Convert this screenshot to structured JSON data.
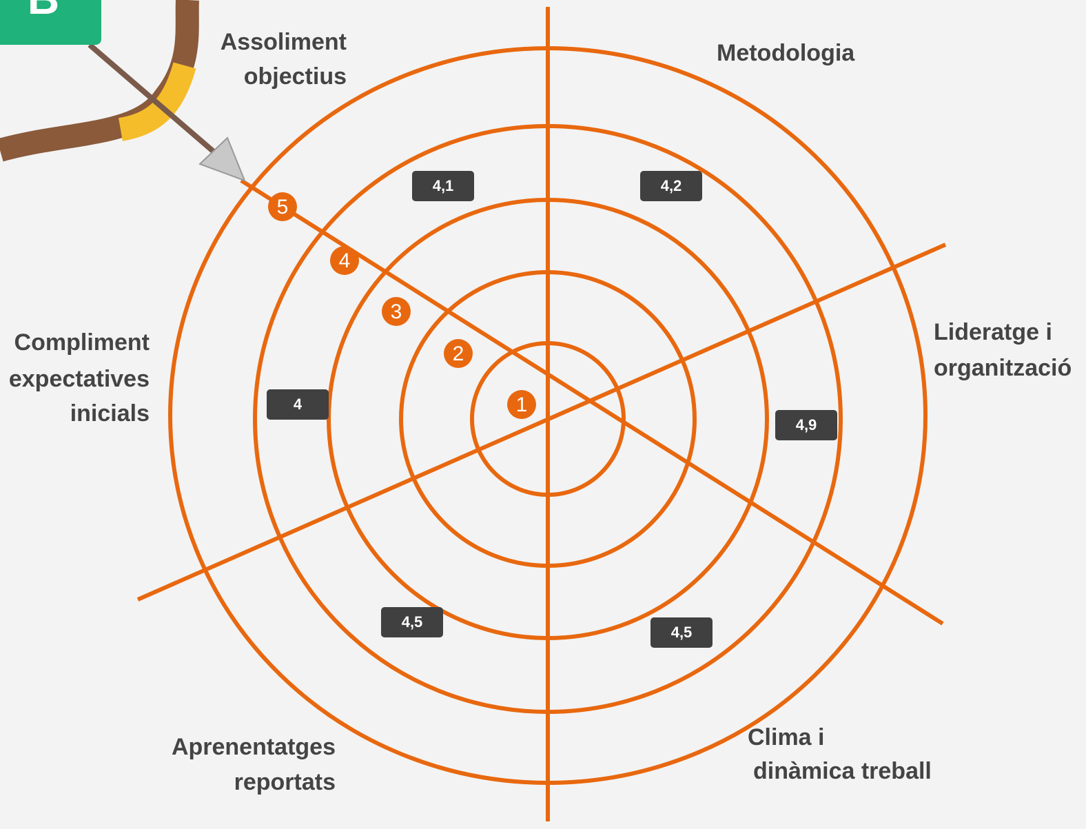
{
  "badge": "B",
  "sectors": [
    {
      "label": [
        "Assoliment",
        "objectius"
      ],
      "value": "4,1"
    },
    {
      "label": [
        "Metodologia"
      ],
      "value": "4,2"
    },
    {
      "label": [
        "Lideratge i",
        "organització"
      ],
      "value": "4,9"
    },
    {
      "label": [
        "Clima i",
        "dinàmica treball"
      ],
      "value": "4,5"
    },
    {
      "label": [
        "Aprenentatges",
        "reportats"
      ],
      "value": "4,5"
    },
    {
      "label": [
        "Compliment",
        "expectatives",
        "inicials"
      ],
      "value": "4"
    }
  ],
  "scale": [
    1,
    2,
    3,
    4,
    5
  ]
}
